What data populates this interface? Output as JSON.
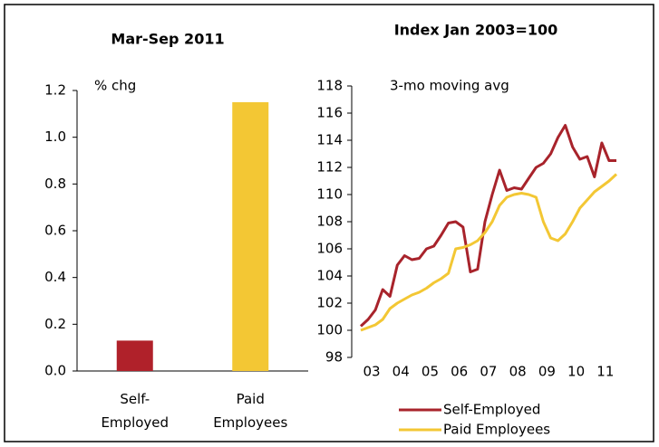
{
  "chart_data": [
    {
      "type": "bar",
      "title": "Mar-Sep 2011",
      "y_label": "% chg",
      "categories": [
        "Self- Employed",
        "Paid Employees"
      ],
      "values": [
        0.13,
        1.15
      ],
      "colors": [
        "#b0212a",
        "#f3c734"
      ],
      "ylim": [
        0,
        1.2
      ],
      "yticks": [
        {
          "value": 0,
          "label": "0.0"
        },
        0.2,
        0.4,
        0.6,
        0.8,
        {
          "value": 1,
          "label": "1.0"
        },
        1.2
      ]
    },
    {
      "type": "line",
      "title": "Index Jan 2003=100",
      "annotation": "3-mo moving avg",
      "x": [
        2003,
        2003.25,
        2003.5,
        2003.75,
        2004,
        2004.25,
        2004.5,
        2004.75,
        2005,
        2005.25,
        2005.5,
        2005.75,
        2006,
        2006.25,
        2006.5,
        2006.75,
        2007,
        2007.25,
        2007.5,
        2007.75,
        2008,
        2008.25,
        2008.5,
        2008.75,
        2009,
        2009.25,
        2009.5,
        2009.75,
        2010,
        2010.25,
        2010.5,
        2010.75,
        2011,
        2011.25,
        2011.5,
        2011.75
      ],
      "series": [
        {
          "name": "Self-Employed",
          "color": "#a8232b",
          "values": [
            100.3,
            100.8,
            101.5,
            103.0,
            102.5,
            104.8,
            105.5,
            105.2,
            105.3,
            106.0,
            106.2,
            107.0,
            107.9,
            108.0,
            107.6,
            104.3,
            104.5,
            108.0,
            110.0,
            111.8,
            110.3,
            110.5,
            110.4,
            111.2,
            112.0,
            112.3,
            113.0,
            114.2,
            115.1,
            113.5,
            112.6,
            112.8,
            111.3,
            113.8,
            112.5,
            112.5
          ]
        },
        {
          "name": "Paid Employees",
          "color": "#f3c734",
          "values": [
            100.0,
            100.2,
            100.4,
            100.8,
            101.6,
            102.0,
            102.3,
            102.6,
            102.8,
            103.1,
            103.5,
            103.8,
            104.2,
            106.0,
            106.1,
            106.3,
            106.6,
            107.2,
            108.0,
            109.2,
            109.8,
            110.0,
            110.1,
            110.0,
            109.8,
            108.0,
            106.8,
            106.6,
            107.1,
            108.0,
            109.0,
            109.6,
            110.2,
            110.6,
            111.0,
            111.5
          ]
        }
      ],
      "xlim": [
        2003,
        2011.75
      ],
      "xticks": [
        {
          "value": 2003,
          "label": "03"
        },
        {
          "value": 2004,
          "label": "04"
        },
        {
          "value": 2005,
          "label": "05"
        },
        {
          "value": 2006,
          "label": "06"
        },
        {
          "value": 2007,
          "label": "07"
        },
        {
          "value": 2008,
          "label": "08"
        },
        {
          "value": 2009,
          "label": "09"
        },
        {
          "value": 2010,
          "label": "10"
        },
        {
          "value": 2011,
          "label": "11"
        }
      ],
      "ylim": [
        98,
        118
      ],
      "yticks": [
        98,
        100,
        102,
        104,
        106,
        108,
        110,
        112,
        114,
        116,
        118
      ],
      "legend": "bottom"
    }
  ]
}
